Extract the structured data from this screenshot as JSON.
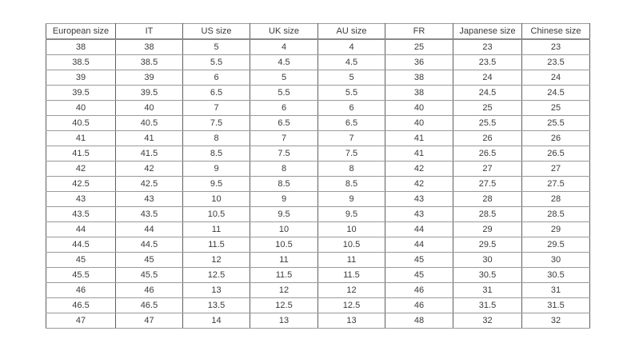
{
  "page": {
    "background": "#ffffff"
  },
  "colors": {
    "grid_vertical": "#5f5f5f",
    "grid_horizontal": "#9a9a9a",
    "header_underline": "#8a8a8a",
    "text": "#3b3b3b"
  },
  "chart_data": {
    "type": "table",
    "title": "",
    "columns": [
      "European size",
      "IT",
      "US size",
      "UK size",
      "AU size",
      "FR",
      "Japanese size",
      "Chinese size"
    ],
    "rows": [
      [
        "38",
        "38",
        "5",
        "4",
        "4",
        "25",
        "23",
        "23"
      ],
      [
        "38.5",
        "38.5",
        "5.5",
        "4.5",
        "4.5",
        "36",
        "23.5",
        "23.5"
      ],
      [
        "39",
        "39",
        "6",
        "5",
        "5",
        "38",
        "24",
        "24"
      ],
      [
        "39.5",
        "39.5",
        "6.5",
        "5.5",
        "5.5",
        "38",
        "24.5",
        "24.5"
      ],
      [
        "40",
        "40",
        "7",
        "6",
        "6",
        "40",
        "25",
        "25"
      ],
      [
        "40.5",
        "40.5",
        "7.5",
        "6.5",
        "6.5",
        "40",
        "25.5",
        "25.5"
      ],
      [
        "41",
        "41",
        "8",
        "7",
        "7",
        "41",
        "26",
        "26"
      ],
      [
        "41.5",
        "41.5",
        "8.5",
        "7.5",
        "7.5",
        "41",
        "26.5",
        "26.5"
      ],
      [
        "42",
        "42",
        "9",
        "8",
        "8",
        "42",
        "27",
        "27"
      ],
      [
        "42.5",
        "42.5",
        "9.5",
        "8.5",
        "8.5",
        "42",
        "27.5",
        "27.5"
      ],
      [
        "43",
        "43",
        "10",
        "9",
        "9",
        "43",
        "28",
        "28"
      ],
      [
        "43.5",
        "43.5",
        "10.5",
        "9.5",
        "9.5",
        "43",
        "28.5",
        "28.5"
      ],
      [
        "44",
        "44",
        "11",
        "10",
        "10",
        "44",
        "29",
        "29"
      ],
      [
        "44.5",
        "44.5",
        "11.5",
        "10.5",
        "10.5",
        "44",
        "29.5",
        "29.5"
      ],
      [
        "45",
        "45",
        "12",
        "11",
        "11",
        "45",
        "30",
        "30"
      ],
      [
        "45.5",
        "45.5",
        "12.5",
        "11.5",
        "11.5",
        "45",
        "30.5",
        "30.5"
      ],
      [
        "46",
        "46",
        "13",
        "12",
        "12",
        "46",
        "31",
        "31"
      ],
      [
        "46.5",
        "46.5",
        "13.5",
        "12.5",
        "12.5",
        "46",
        "31.5",
        "31.5"
      ],
      [
        "47",
        "47",
        "14",
        "13",
        "13",
        "48",
        "32",
        "32"
      ]
    ]
  }
}
